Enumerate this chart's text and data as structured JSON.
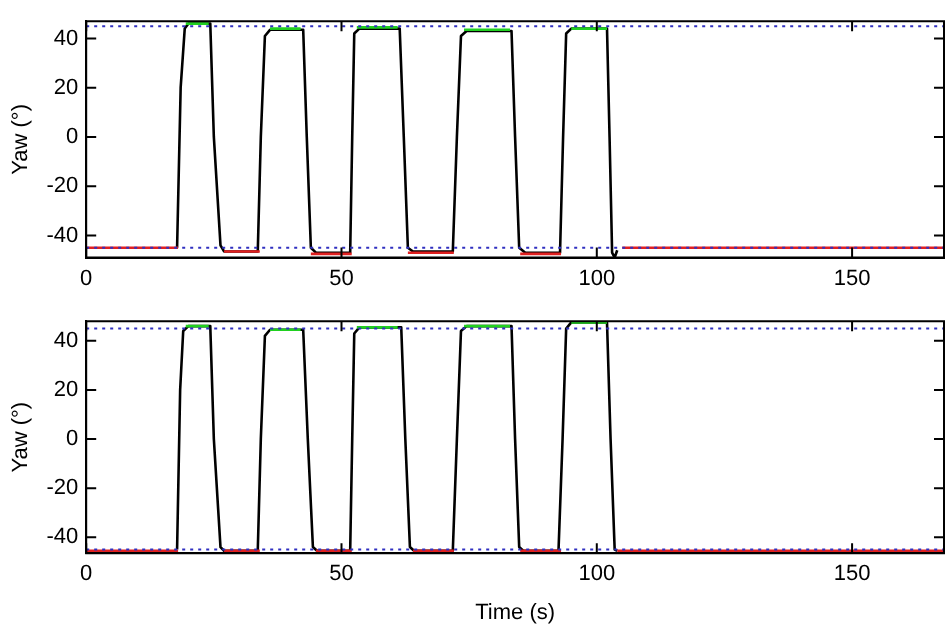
{
  "chart_data": [
    {
      "type": "line",
      "ylabel": "Yaw (°)",
      "xlim": [
        0,
        168
      ],
      "ylim": [
        -49,
        47
      ],
      "xticks": [
        0,
        50,
        100,
        150
      ],
      "yticks": [
        -40,
        -20,
        0,
        20,
        40
      ],
      "ref_lines": [
        {
          "axis": "y",
          "value": 45,
          "color": "#3030c0",
          "line_style": "dotted"
        },
        {
          "axis": "y",
          "value": -45,
          "color": "#3030c0",
          "line_style": "dotted"
        }
      ],
      "series": [
        {
          "color": "#e02020",
          "x": [
            0,
            18,
            22,
            27,
            34,
            39,
            44,
            52,
            57,
            63,
            72,
            78,
            85,
            93,
            99,
            105,
            168
          ],
          "values": [
            -45,
            -45,
            null,
            -46.5,
            -46.5,
            null,
            -47.5,
            -47.5,
            null,
            -47,
            -47,
            null,
            -47.5,
            -47.5,
            null,
            -45,
            -45
          ]
        },
        {
          "color": "#20d020",
          "x": [
            19.5,
            24,
            30,
            36,
            42,
            48,
            53,
            61,
            68,
            74,
            83,
            89,
            95,
            102
          ],
          "values": [
            46,
            46,
            null,
            44,
            44,
            null,
            44.5,
            44.5,
            null,
            43.5,
            43.5,
            null,
            44,
            44
          ]
        },
        {
          "color": "#000000",
          "x": [
            17.8,
            18.5,
            19.3,
            20,
            24.3,
            25,
            26.3,
            27,
            33.6,
            34.2,
            35,
            36,
            42.5,
            43.2,
            44,
            45,
            51.7,
            52.1,
            52.5,
            53.5,
            61.4,
            62.2,
            63,
            64,
            71.8,
            72.6,
            73.4,
            74.5,
            83.3,
            84,
            84.8,
            86,
            92.8,
            93.4,
            94,
            95,
            102,
            102.5,
            103,
            103.5,
            104
          ],
          "values": [
            -45,
            20,
            44,
            46,
            46,
            0,
            -44,
            -46.5,
            -46.5,
            0,
            41,
            43.5,
            43.5,
            0,
            -45,
            -47,
            -47,
            0,
            42,
            44,
            44,
            0,
            -45,
            -46.5,
            -46.5,
            0,
            41,
            43,
            43,
            0,
            -45,
            -47,
            -47,
            0,
            42,
            44,
            44,
            0,
            -47,
            -49,
            -46
          ]
        }
      ]
    },
    {
      "type": "line",
      "xlabel": "Time (s)",
      "ylabel": "Yaw (°)",
      "xlim": [
        0,
        168
      ],
      "ylim": [
        -46.5,
        48
      ],
      "xticks": [
        0,
        50,
        100,
        150
      ],
      "yticks": [
        -40,
        -20,
        0,
        20,
        40
      ],
      "ref_lines": [
        {
          "axis": "y",
          "value": 45,
          "color": "#3030c0",
          "line_style": "dotted"
        },
        {
          "axis": "y",
          "value": -45,
          "color": "#3030c0",
          "line_style": "dotted"
        }
      ],
      "series": [
        {
          "color": "#e02020",
          "x": [
            0,
            18,
            22,
            27,
            34,
            39,
            45,
            52,
            57,
            64,
            72,
            78,
            85,
            93,
            99,
            104,
            168
          ],
          "values": [
            -45.5,
            -45.5,
            null,
            -45.5,
            -45.5,
            null,
            -45.5,
            -45.5,
            null,
            -45.5,
            -45.5,
            null,
            -45.5,
            -45.5,
            null,
            -45.5,
            -45.5
          ]
        },
        {
          "color": "#20d020",
          "x": [
            19.5,
            24,
            30,
            36,
            42,
            48,
            53,
            61,
            68,
            74,
            83,
            89,
            95,
            102
          ],
          "values": [
            46,
            46,
            null,
            44.5,
            44.5,
            null,
            45.5,
            45.5,
            null,
            46,
            46,
            null,
            47.5,
            47.5
          ]
        },
        {
          "color": "#000000",
          "x": [
            17.8,
            18.4,
            19,
            20,
            24.3,
            25,
            26.3,
            27,
            33.6,
            34.2,
            35,
            36,
            42.5,
            43.4,
            44.4,
            45.2,
            51.7,
            52.1,
            52.5,
            53.5,
            61.7,
            62.5,
            63.4,
            64.2,
            71.8,
            72.6,
            73.4,
            74.5,
            83.3,
            84,
            84.8,
            85.6,
            92.5,
            93.3,
            94,
            95,
            102,
            102.7,
            103.5,
            104
          ],
          "values": [
            -45,
            20,
            44,
            46,
            46,
            0,
            -44,
            -45.5,
            -45.5,
            0,
            42,
            44.5,
            44.5,
            0,
            -44,
            -45.5,
            -45.5,
            0,
            43,
            45.5,
            45.5,
            0,
            -44,
            -45.5,
            -45.5,
            0,
            44,
            46,
            46,
            0,
            -44,
            -45.5,
            -45.5,
            0,
            45,
            47.5,
            47.5,
            0,
            -45,
            -45.5
          ]
        }
      ]
    }
  ]
}
